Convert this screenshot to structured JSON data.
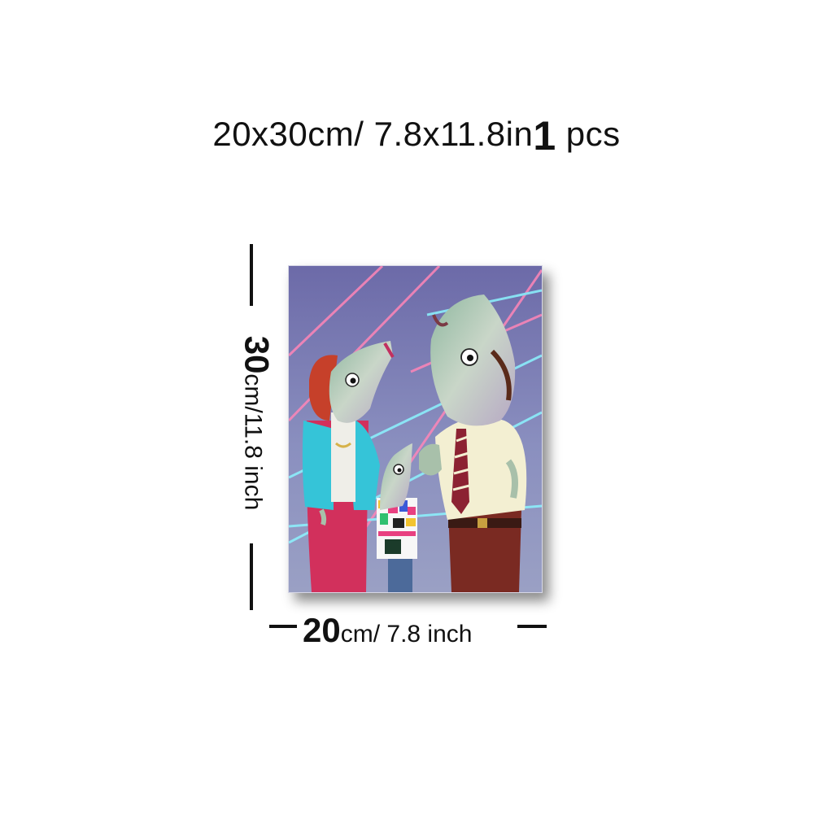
{
  "headline": {
    "size": "20x30cm/ 7.8x11.8in",
    "quantity": "1",
    "unit": "pcs"
  },
  "height_label": {
    "number": "30",
    "unit_text": "cm/11.8 inch"
  },
  "width_label": {
    "number": "20",
    "unit_text": "cm/ 7.8 inch"
  },
  "colors": {
    "background": "#7a86b0",
    "laser_pink": "#ff7fb0",
    "laser_cyan": "#7ff0ff",
    "jacket": "#2fc3d6",
    "pants_pink": "#d0305a",
    "shirt": "#f3efd2",
    "pants_brown": "#7a2a22"
  }
}
